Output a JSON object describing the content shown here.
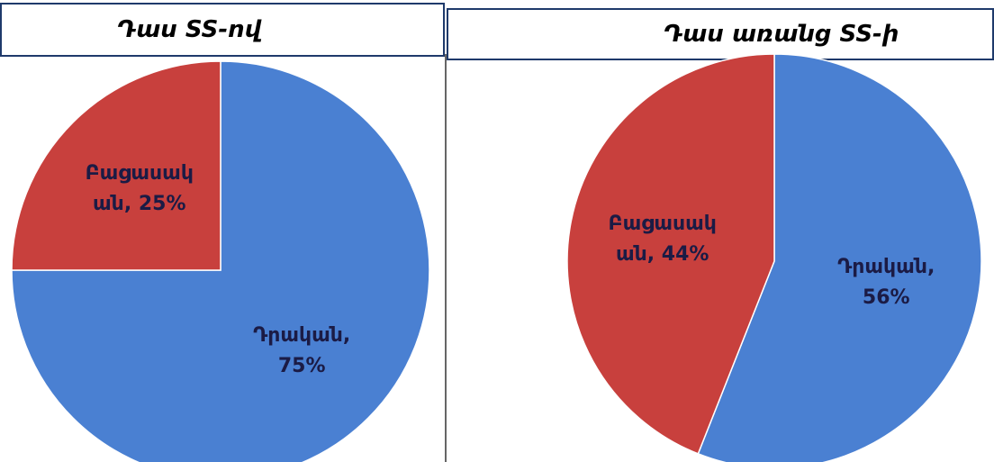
{
  "chart_data": [
    {
      "type": "pie",
      "title": "Դաս SS-ով",
      "values": [
        75,
        25
      ],
      "value_labels": [
        "Դրական, 75%",
        "Բացասական, 25%"
      ],
      "colors": [
        "#4a80d2",
        "#c8403d"
      ]
    },
    {
      "type": "pie",
      "title": "Դաս առանց SS-ի",
      "values": [
        56,
        44
      ],
      "value_labels": [
        "Դրական, 56%",
        "Բացասական, 44%"
      ],
      "colors": [
        "#4a80d2",
        "#c8403d"
      ]
    }
  ]
}
